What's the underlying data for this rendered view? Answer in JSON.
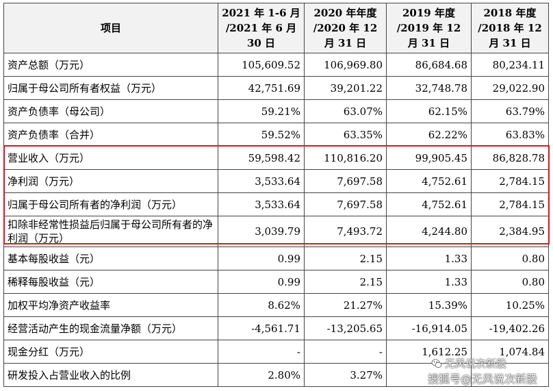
{
  "table": {
    "headers": [
      "项目",
      "2021 年 1-6 月 /2021 年 6 月 30 日",
      "2020 年年度 /2020 年 12 月 31 日",
      "2019 年度 /2019 年 12 月 31 日",
      "2018 年度 /2018 年 12 月 31 日"
    ],
    "rows": [
      {
        "label": "资产总额（万元）",
        "values": [
          "105,609.52",
          "106,969.80",
          "86,684.68",
          "80,234.11"
        ]
      },
      {
        "label": "归属于母公司所有者权益（万元）",
        "values": [
          "42,751.69",
          "39,201.22",
          "32,748.78",
          "29,022.90"
        ]
      },
      {
        "label": "资产负债率（母公司）",
        "values": [
          "59.21%",
          "63.07%",
          "62.15%",
          "63.79%"
        ]
      },
      {
        "label": "资产负债率（合并）",
        "values": [
          "59.52%",
          "63.35%",
          "62.22%",
          "63.83%"
        ]
      },
      {
        "label": "营业收入（万元）",
        "values": [
          "59,598.42",
          "110,816.20",
          "99,905.45",
          "86,828.78"
        ]
      },
      {
        "label": "净利润（万元）",
        "values": [
          "3,533.64",
          "7,697.58",
          "4,752.61",
          "2,784.15"
        ]
      },
      {
        "label": "归属于母公司所有者的净利润（万元）",
        "values": [
          "3,533.64",
          "7,697.58",
          "4,752.61",
          "2,784.15"
        ]
      },
      {
        "label": "扣除非经常性损益后归属于母公司所有者的净利润（万元）",
        "values": [
          "3,039.79",
          "7,493.72",
          "4,244.80",
          "2,384.95"
        ]
      },
      {
        "label": "基本每股收益（元）",
        "values": [
          "0.99",
          "2.15",
          "1.33",
          "0.80"
        ]
      },
      {
        "label": "稀释每股收益（元）",
        "values": [
          "0.99",
          "2.15",
          "1.33",
          "0.80"
        ]
      },
      {
        "label": "加权平均净资产收益率",
        "values": [
          "8.62%",
          "21.27%",
          "15.39%",
          "10.25%"
        ]
      },
      {
        "label": "经营活动产生的现金流量净额（万元）",
        "values": [
          "-4,561.71",
          "-13,205.65",
          "-16,914.05",
          "-19,402.26"
        ]
      },
      {
        "label": "现金分红（万元）",
        "values": [
          "-",
          "-",
          "1,612.25",
          "1,074.84"
        ]
      },
      {
        "label": "研发投入占营业收入的比例",
        "values": [
          "2.80%",
          "3.27%",
          "",
          ""
        ]
      }
    ]
  },
  "highlight": {
    "color": "#e0141b"
  },
  "watermark": {
    "line1": "无风说次新股",
    "line2": "搜狐号@无风说次新股",
    "icon": "wechat-icon"
  }
}
